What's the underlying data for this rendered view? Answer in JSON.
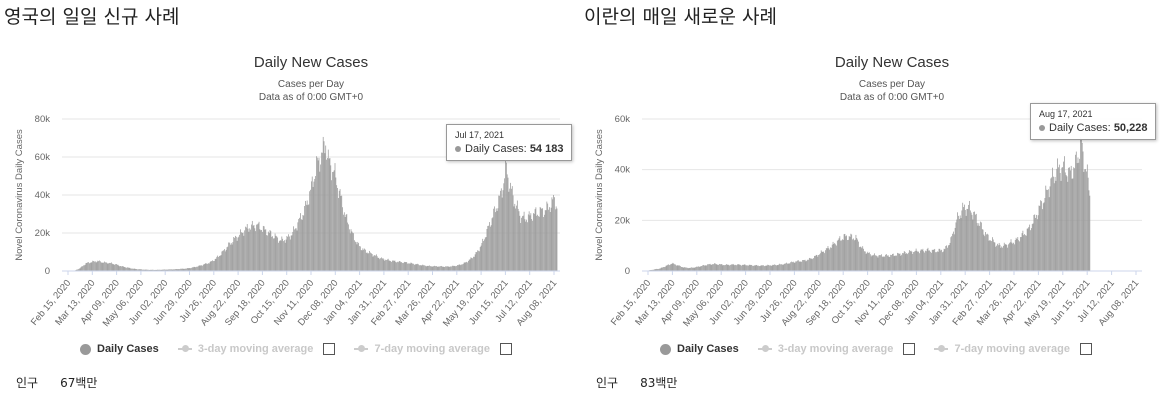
{
  "panels": [
    {
      "heading": "영국의 일일 신규 사례",
      "population_label": "인구",
      "population_value": "67백만",
      "tooltip": {
        "date": "Jul 17, 2021",
        "label": "Daily Cases:",
        "value": "54 183"
      },
      "legend": {
        "daily": "Daily Cases",
        "ma3": "3-day moving average",
        "ma7": "7-day moving average"
      }
    },
    {
      "heading": "이란의 매일 새로운 사례",
      "population_label": "인구",
      "population_value": "83백만",
      "tooltip": {
        "date": "Aug 17, 2021",
        "label": "Daily Cases:",
        "value": "50,228"
      },
      "legend": {
        "daily": "Daily Cases",
        "ma3": "3-day moving average",
        "ma7": "7-day moving average"
      }
    }
  ],
  "colors": {
    "bar": "#999999",
    "grid": "#e6e6e6",
    "axis": "#ccd6eb"
  },
  "chart_data": [
    {
      "type": "bar",
      "title": "Daily New Cases",
      "subtitle": "Cases per Day",
      "subtitle2": "Data as of 0:00 GMT+0",
      "ylabel": "Novel Coronavirus Daily Cases",
      "ylim": [
        0,
        80000
      ],
      "yticks": [
        "0",
        "20k",
        "40k",
        "60k",
        "80k"
      ],
      "yticks_values": [
        0,
        20000,
        40000,
        60000,
        80000
      ],
      "xtick_labels": [
        "Feb 15, 2020",
        "Mar 13, 2020",
        "Apr 09, 2020",
        "May 06, 2020",
        "Jun 02, 2020",
        "Jun 29, 2020",
        "Jul 26, 2020",
        "Aug 22, 2020",
        "Sep 18, 2020",
        "Oct 15, 2020",
        "Nov 11, 2020",
        "Dec 08, 2020",
        "Jan 04, 2021",
        "Jan 31, 2021",
        "Feb 27, 2021",
        "Mar 26, 2021",
        "Apr 22, 2021",
        "May 19, 2021",
        "Jun 15, 2021",
        "Jul 12, 2021",
        "Aug 08, 2021"
      ],
      "series": [
        {
          "name": "Daily Cases",
          "key_points": [
            [
              0,
              0
            ],
            [
              14,
              50
            ],
            [
              21,
              1500
            ],
            [
              28,
              4000
            ],
            [
              35,
              4800
            ],
            [
              42,
              5200
            ],
            [
              49,
              4500
            ],
            [
              56,
              4200
            ],
            [
              63,
              3500
            ],
            [
              70,
              2500
            ],
            [
              77,
              1800
            ],
            [
              84,
              1200
            ],
            [
              91,
              900
            ],
            [
              98,
              700
            ],
            [
              105,
              600
            ],
            [
              112,
              600
            ],
            [
              119,
              700
            ],
            [
              126,
              800
            ],
            [
              133,
              900
            ],
            [
              140,
              1100
            ],
            [
              147,
              1300
            ],
            [
              154,
              1800
            ],
            [
              161,
              2500
            ],
            [
              168,
              3500
            ],
            [
              175,
              4500
            ],
            [
              182,
              6500
            ],
            [
              189,
              9500
            ],
            [
              196,
              13000
            ],
            [
              203,
              16500
            ],
            [
              210,
              19000
            ],
            [
              217,
              22000
            ],
            [
              224,
              23500
            ],
            [
              231,
              24000
            ],
            [
              238,
              22000
            ],
            [
              245,
              20000
            ],
            [
              252,
              18000
            ],
            [
              259,
              16000
            ],
            [
              266,
              17000
            ],
            [
              273,
              20000
            ],
            [
              280,
              26000
            ],
            [
              287,
              32000
            ],
            [
              294,
              42000
            ],
            [
              301,
              55000
            ],
            [
              308,
              62000
            ],
            [
              312,
              67800
            ],
            [
              315,
              58000
            ],
            [
              322,
              52000
            ],
            [
              329,
              40000
            ],
            [
              336,
              28000
            ],
            [
              343,
              20000
            ],
            [
              350,
              14000
            ],
            [
              357,
              11000
            ],
            [
              364,
              9500
            ],
            [
              371,
              8000
            ],
            [
              378,
              6500
            ],
            [
              385,
              5800
            ],
            [
              392,
              5200
            ],
            [
              399,
              4800
            ],
            [
              406,
              4500
            ],
            [
              413,
              4000
            ],
            [
              420,
              3500
            ],
            [
              427,
              3000
            ],
            [
              434,
              2600
            ],
            [
              441,
              2500
            ],
            [
              448,
              2400
            ],
            [
              455,
              2300
            ],
            [
              462,
              2500
            ],
            [
              469,
              3000
            ],
            [
              476,
              4000
            ],
            [
              483,
              6000
            ],
            [
              490,
              9000
            ],
            [
              497,
              14000
            ],
            [
              504,
              22000
            ],
            [
              511,
              30000
            ],
            [
              518,
              38000
            ],
            [
              522,
              45000
            ],
            [
              525,
              52000
            ],
            [
              526,
              54183
            ],
            [
              530,
              45000
            ],
            [
              537,
              35000
            ],
            [
              544,
              28000
            ],
            [
              551,
              28000
            ],
            [
              558,
              30000
            ],
            [
              565,
              31000
            ],
            [
              572,
              32000
            ],
            [
              579,
              35000
            ],
            [
              583,
              38000
            ],
            [
              586,
              34000
            ]
          ]
        }
      ]
    },
    {
      "type": "bar",
      "title": "Daily New Cases",
      "subtitle": "Cases per Day",
      "subtitle2": "Data as of 0:00 GMT+0",
      "ylabel": "Novel Coronavirus Daily Cases",
      "ylim": [
        0,
        60000
      ],
      "yticks": [
        "0",
        "20k",
        "40k",
        "60k"
      ],
      "yticks_values": [
        0,
        20000,
        40000,
        60000
      ],
      "xtick_labels": [
        "Feb 15, 2020",
        "Mar 13, 2020",
        "Apr 09, 2020",
        "May 06, 2020",
        "Jun 02, 2020",
        "Jun 29, 2020",
        "Jul 26, 2020",
        "Aug 22, 2020",
        "Sep 18, 2020",
        "Oct 15, 2020",
        "Nov 11, 2020",
        "Dec 08, 2020",
        "Jan 04, 2021",
        "Jan 31, 2021",
        "Feb 27, 2021",
        "Mar 26, 2021",
        "Apr 22, 2021",
        "May 19, 2021",
        "Jun 15, 2021",
        "Jul 12, 2021",
        "Aug 08, 2021"
      ],
      "series": [
        {
          "name": "Daily Cases",
          "key_points": [
            [
              0,
              0
            ],
            [
              7,
              200
            ],
            [
              14,
              600
            ],
            [
              21,
              1000
            ],
            [
              28,
              2000
            ],
            [
              35,
              3000
            ],
            [
              42,
              2200
            ],
            [
              49,
              1400
            ],
            [
              56,
              1200
            ],
            [
              63,
              1500
            ],
            [
              70,
              2000
            ],
            [
              77,
              2500
            ],
            [
              84,
              2800
            ],
            [
              91,
              2600
            ],
            [
              98,
              2400
            ],
            [
              105,
              2500
            ],
            [
              112,
              2500
            ],
            [
              119,
              2400
            ],
            [
              126,
              2300
            ],
            [
              133,
              2200
            ],
            [
              140,
              2100
            ],
            [
              147,
              2200
            ],
            [
              154,
              2300
            ],
            [
              161,
              2500
            ],
            [
              168,
              2800
            ],
            [
              175,
              3300
            ],
            [
              182,
              3800
            ],
            [
              189,
              4000
            ],
            [
              196,
              4500
            ],
            [
              203,
              5500
            ],
            [
              210,
              7000
            ],
            [
              217,
              8500
            ],
            [
              224,
              10000
            ],
            [
              231,
              12000
            ],
            [
              238,
              13500
            ],
            [
              245,
              13500
            ],
            [
              252,
              13000
            ],
            [
              259,
              9000
            ],
            [
              266,
              7000
            ],
            [
              273,
              6200
            ],
            [
              280,
              6000
            ],
            [
              287,
              6000
            ],
            [
              294,
              6200
            ],
            [
              301,
              6500
            ],
            [
              308,
              7000
            ],
            [
              315,
              7500
            ],
            [
              322,
              7800
            ],
            [
              329,
              8000
            ],
            [
              336,
              8200
            ],
            [
              343,
              8000
            ],
            [
              350,
              8000
            ],
            [
              357,
              8500
            ],
            [
              364,
              12000
            ],
            [
              371,
              20000
            ],
            [
              378,
              24500
            ],
            [
              385,
              25000
            ],
            [
              392,
              22000
            ],
            [
              399,
              18000
            ],
            [
              406,
              14000
            ],
            [
              413,
              12000
            ],
            [
              420,
              10000
            ],
            [
              427,
              10000
            ],
            [
              434,
              11000
            ],
            [
              441,
              12000
            ],
            [
              448,
              14000
            ],
            [
              455,
              16000
            ],
            [
              462,
              20000
            ],
            [
              469,
              25000
            ],
            [
              476,
              30000
            ],
            [
              483,
              36000
            ],
            [
              490,
              40000
            ],
            [
              497,
              41000
            ],
            [
              504,
              38000
            ],
            [
              511,
              42000
            ],
            [
              518,
              50228
            ],
            [
              520,
              45000
            ],
            [
              524,
              40000
            ],
            [
              528,
              30000
            ]
          ]
        }
      ]
    }
  ]
}
